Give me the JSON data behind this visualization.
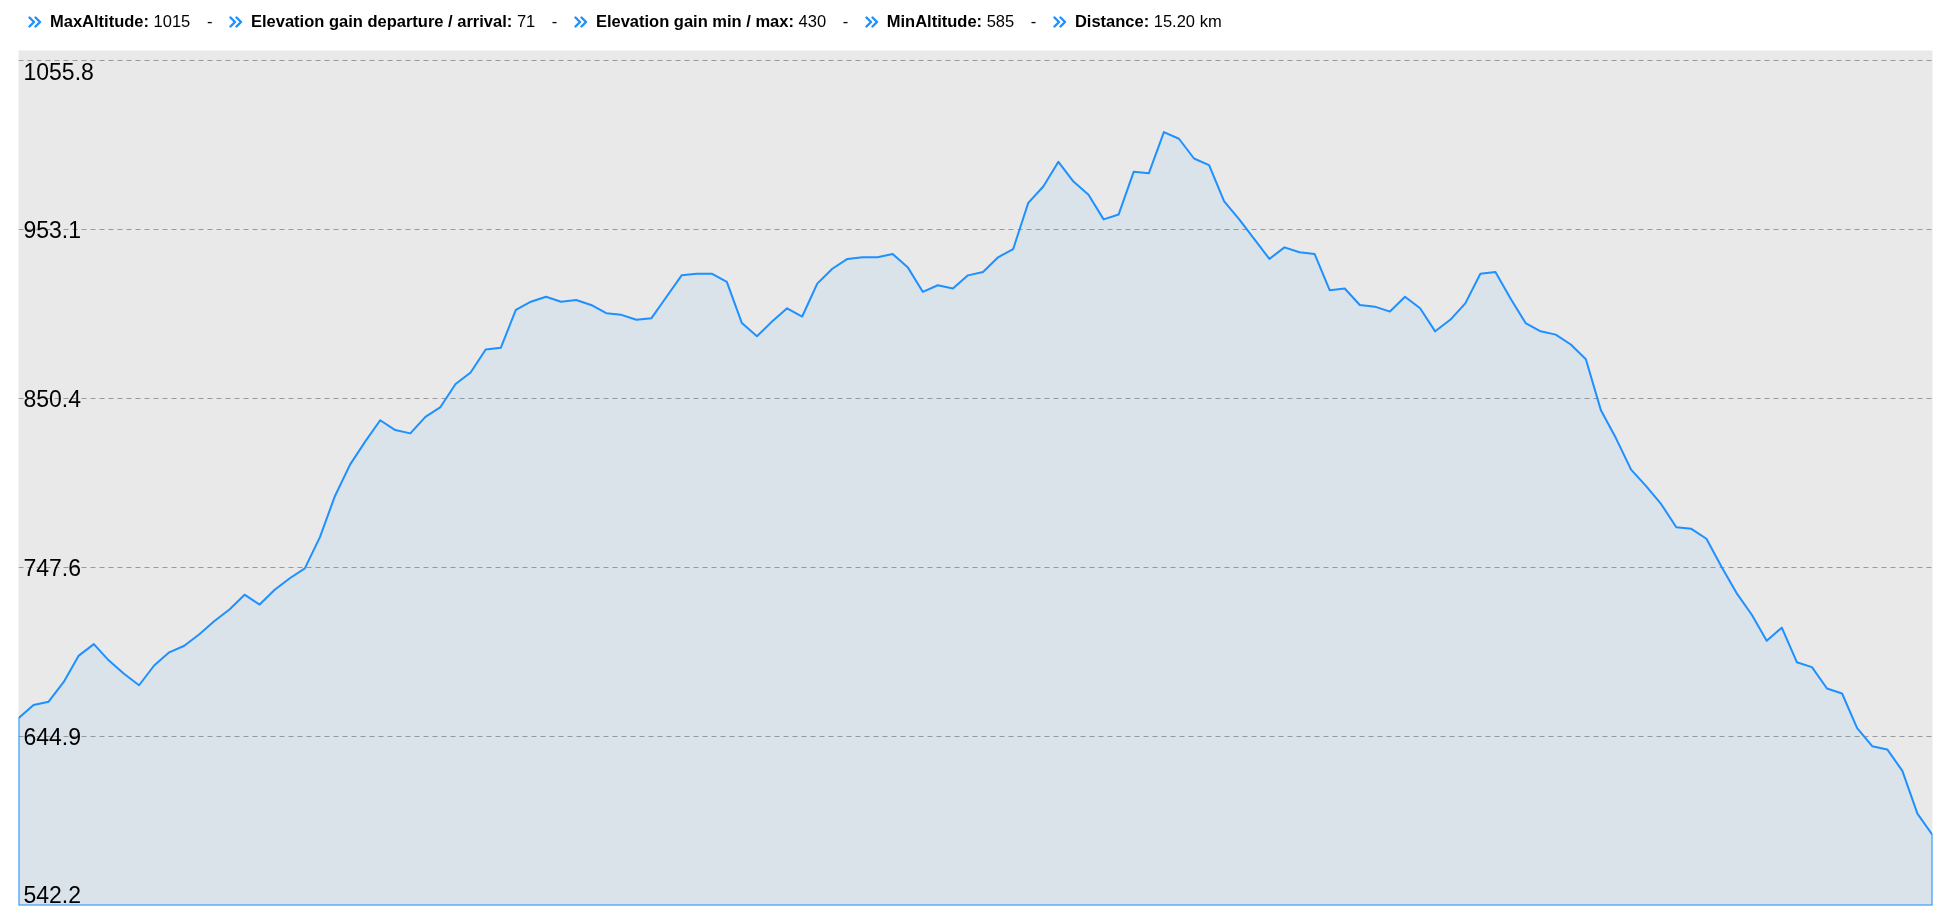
{
  "chart_data": {
    "type": "area",
    "title": "MaxAltitude: 1015 - Elevation gain departure / arrival: 71 - Elevation gain min / max: 430 - MinAltitude: 585 - Distance: 15.20 km",
    "categories": [
      null,
      null,
      null,
      null,
      null,
      null,
      null,
      null,
      null,
      null,
      null,
      null,
      null,
      null,
      null,
      null,
      null,
      null,
      null,
      null,
      null,
      null,
      null,
      null,
      null,
      null,
      null,
      null,
      null,
      null,
      null,
      null,
      null,
      null,
      null,
      null,
      null,
      null,
      null,
      null,
      null,
      null,
      null,
      null,
      null,
      null,
      null,
      null,
      null,
      null,
      null,
      null,
      null,
      null,
      null,
      null,
      null,
      null,
      null,
      null,
      null,
      null,
      null,
      null,
      null,
      null,
      null,
      null,
      null,
      null,
      null,
      null,
      null,
      null,
      null,
      null,
      null,
      null,
      null,
      null,
      null,
      null,
      null,
      null,
      null,
      null,
      null,
      null,
      null,
      null,
      null,
      null,
      null,
      null,
      null,
      null,
      null,
      null,
      null,
      null,
      null,
      null,
      null,
      null,
      null,
      null,
      null,
      null,
      null,
      null,
      null,
      null,
      null,
      null,
      null,
      null,
      null,
      null,
      null,
      null,
      null,
      null,
      null,
      null,
      null,
      null,
      null,
      null
    ],
    "values": [
      656,
      664,
      666,
      678,
      694,
      701,
      691,
      683,
      676,
      688,
      696,
      700,
      707,
      715,
      722,
      731,
      725,
      734,
      741,
      747,
      766,
      791,
      810,
      824,
      837,
      831,
      829,
      839,
      845,
      859,
      866,
      880,
      881,
      904,
      909,
      912,
      909,
      910,
      907,
      902,
      901,
      898,
      899,
      912,
      925,
      926,
      926,
      921,
      896,
      888,
      897,
      905,
      900,
      920,
      929,
      935,
      936,
      936,
      938,
      930,
      915,
      919,
      917,
      925,
      927,
      936,
      941,
      969,
      979,
      994,
      982,
      974,
      959,
      962,
      988,
      987,
      1012,
      1008,
      996,
      992,
      970,
      959,
      947,
      935,
      942,
      939,
      938,
      916,
      917,
      907,
      906,
      903,
      912,
      905,
      891,
      898,
      908,
      926,
      927,
      911,
      896,
      891,
      889,
      883,
      874,
      843,
      826,
      807,
      797,
      786,
      772,
      771,
      765,
      748,
      732,
      719,
      703,
      711,
      690,
      687,
      674,
      671,
      650,
      639,
      637,
      624,
      598,
      585
    ],
    "color": "#1e90ff",
    "ylim": [
      542.2,
      1061.6
    ],
    "yticks": [
      542.2,
      644.9,
      747.6,
      850.4,
      953.1,
      1055.8
    ],
    "grid": "y",
    "tick_labels": "y"
  }
}
